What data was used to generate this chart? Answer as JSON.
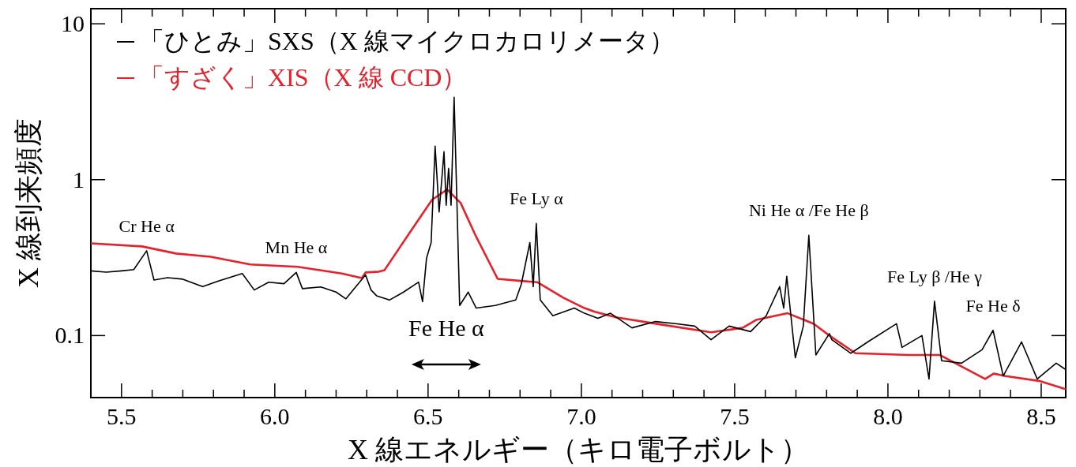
{
  "chart_data": {
    "type": "line",
    "xlabel": "X 線エネルギー（キロ電子ボルト）",
    "ylabel": "X 線到来頻度",
    "log": "y",
    "grid": false,
    "legend": "top left",
    "marker": "none",
    "line_style": "solid",
    "xlim": [
      5.4,
      8.58
    ],
    "ylim": [
      0.04,
      12.5
    ],
    "xticks": [
      {
        "value": 5.5,
        "label": "5.5"
      },
      {
        "value": 5.6,
        "label": null
      },
      {
        "value": 5.7,
        "label": null
      },
      {
        "value": 5.8,
        "label": null
      },
      {
        "value": 5.9,
        "label": null
      },
      {
        "value": 6.0,
        "label": "6.0"
      },
      {
        "value": 6.1,
        "label": null
      },
      {
        "value": 6.2,
        "label": null
      },
      {
        "value": 6.3,
        "label": null
      },
      {
        "value": 6.4,
        "label": null
      },
      {
        "value": 6.5,
        "label": "6.5"
      },
      {
        "value": 6.6,
        "label": null
      },
      {
        "value": 6.7,
        "label": null
      },
      {
        "value": 6.8,
        "label": null
      },
      {
        "value": 6.9,
        "label": null
      },
      {
        "value": 7.0,
        "label": "7.0"
      },
      {
        "value": 7.1,
        "label": null
      },
      {
        "value": 7.2,
        "label": null
      },
      {
        "value": 7.3,
        "label": null
      },
      {
        "value": 7.4,
        "label": null
      },
      {
        "value": 7.5,
        "label": "7.5"
      },
      {
        "value": 7.6,
        "label": null
      },
      {
        "value": 7.7,
        "label": null
      },
      {
        "value": 7.8,
        "label": null
      },
      {
        "value": 7.9,
        "label": null
      },
      {
        "value": 8.0,
        "label": "8.0"
      },
      {
        "value": 8.1,
        "label": null
      },
      {
        "value": 8.2,
        "label": null
      },
      {
        "value": 8.3,
        "label": null
      },
      {
        "value": 8.4,
        "label": null
      },
      {
        "value": 8.5,
        "label": "8.5"
      }
    ],
    "yticks": [
      0.1,
      1,
      10
    ],
    "series": [
      {
        "name": "「ひとみ」SXS（X 線マイクロカロリメータ）",
        "color": "#000000",
        "x": [
          5.4,
          5.45,
          5.5,
          5.54,
          5.582,
          5.606,
          5.65,
          5.7,
          5.765,
          5.82,
          5.894,
          5.933,
          5.98,
          6.03,
          6.07,
          6.09,
          6.15,
          6.2,
          6.232,
          6.296,
          6.314,
          6.332,
          6.374,
          6.42,
          6.469,
          6.482,
          6.495,
          6.51,
          6.523,
          6.536,
          6.552,
          6.559,
          6.567,
          6.575,
          6.585,
          6.603,
          6.631,
          6.657,
          6.719,
          6.786,
          6.804,
          6.832,
          6.843,
          6.853,
          6.866,
          6.907,
          6.977,
          7.01,
          7.054,
          7.095,
          7.165,
          7.242,
          7.312,
          7.37,
          7.423,
          7.482,
          7.552,
          7.603,
          7.647,
          7.66,
          7.67,
          7.698,
          7.724,
          7.742,
          7.765,
          7.809,
          7.817,
          7.879,
          7.938,
          8.028,
          8.046,
          8.111,
          8.134,
          8.152,
          8.175,
          8.24,
          8.307,
          8.343,
          8.376,
          8.436,
          8.487,
          8.549,
          8.577
        ],
        "values": [
          0.26,
          0.255,
          0.26,
          0.265,
          0.35,
          0.227,
          0.235,
          0.23,
          0.206,
          0.225,
          0.25,
          0.196,
          0.22,
          0.215,
          0.254,
          0.2,
          0.205,
          0.19,
          0.172,
          0.245,
          0.196,
          0.18,
          0.169,
          0.19,
          0.22,
          0.165,
          0.314,
          0.395,
          1.64,
          0.62,
          1.51,
          0.685,
          1.18,
          0.685,
          3.38,
          0.156,
          0.19,
          0.15,
          0.156,
          0.169,
          0.213,
          0.395,
          0.206,
          0.523,
          0.169,
          0.134,
          0.15,
          0.139,
          0.129,
          0.139,
          0.112,
          0.123,
          0.119,
          0.115,
          0.094,
          0.115,
          0.106,
          0.134,
          0.206,
          0.15,
          0.24,
          0.072,
          0.115,
          0.44,
          0.075,
          0.103,
          0.094,
          0.077,
          0.092,
          0.119,
          0.084,
          0.1,
          0.0527,
          0.166,
          0.069,
          0.0665,
          0.081,
          0.108,
          0.055,
          0.091,
          0.0527,
          0.0665,
          0.061
        ]
      },
      {
        "name": "「すざく」XIS（X 線 CCD）",
        "color": "#e8202a",
        "x": [
          5.4,
          5.567,
          5.678,
          5.791,
          5.92,
          6.075,
          6.219,
          6.284,
          6.296,
          6.34,
          6.358,
          6.443,
          6.513,
          6.562,
          6.606,
          6.657,
          6.727,
          6.804,
          6.856,
          6.941,
          7.01,
          7.044,
          7.113,
          7.268,
          7.423,
          7.526,
          7.57,
          7.673,
          7.758,
          7.809,
          7.894,
          8.067,
          8.17,
          8.317,
          8.345,
          8.384,
          8.497,
          8.577
        ],
        "values": [
          0.39,
          0.373,
          0.336,
          0.32,
          0.286,
          0.276,
          0.25,
          0.234,
          0.254,
          0.257,
          0.263,
          0.466,
          0.743,
          0.865,
          0.71,
          0.43,
          0.231,
          0.224,
          0.22,
          0.175,
          0.15,
          0.142,
          0.131,
          0.117,
          0.105,
          0.112,
          0.126,
          0.139,
          0.119,
          0.1,
          0.077,
          0.075,
          0.075,
          0.0527,
          0.057,
          0.055,
          0.051,
          0.0455
        ]
      }
    ],
    "annotations": [
      {
        "text": "Cr He α",
        "x": 5.582,
        "y": 0.35
      },
      {
        "text": "Mn He α",
        "x": 6.07,
        "y": 0.254
      },
      {
        "text": "Fe Ly α",
        "x": 6.853,
        "y": 0.523
      },
      {
        "text": "Ni He α /Fe He β",
        "x": 7.742,
        "y": 0.44
      },
      {
        "text": "Fe Ly β /He γ",
        "x": 8.152,
        "y": 0.166
      },
      {
        "text": "Fe He δ",
        "x": 8.343,
        "y": 0.108
      },
      "Fe He α"
    ]
  }
}
